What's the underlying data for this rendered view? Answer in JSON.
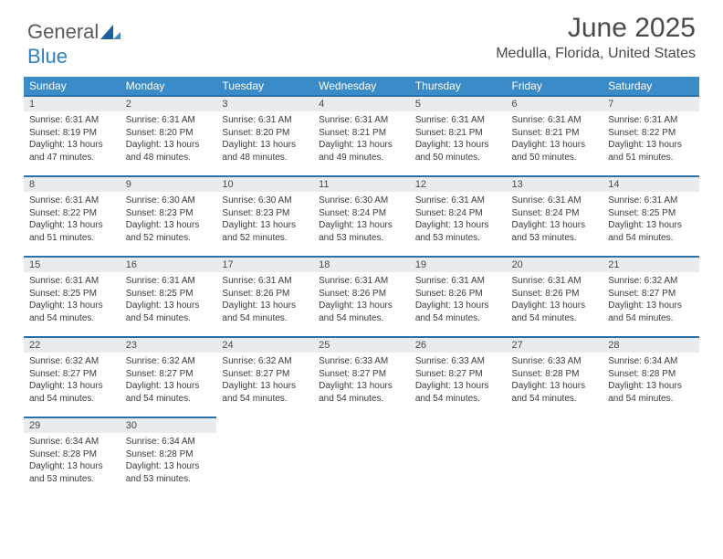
{
  "brand": {
    "part1": "General",
    "part2": "Blue"
  },
  "title": "June 2025",
  "location": "Medulla, Florida, United States",
  "colors": {
    "header_bg": "#3c8bc9",
    "header_text": "#ffffff",
    "daynum_bg": "#e9ecef",
    "daynum_border": "#2f6fa8",
    "body_text": "#3a3a3a",
    "title_text": "#4a4a4a",
    "logo_gray": "#5a5a5a",
    "logo_blue": "#2f7fc2"
  },
  "weekdays": [
    "Sunday",
    "Monday",
    "Tuesday",
    "Wednesday",
    "Thursday",
    "Friday",
    "Saturday"
  ],
  "weeks": [
    [
      {
        "num": "1",
        "sunrise": "Sunrise: 6:31 AM",
        "sunset": "Sunset: 8:19 PM",
        "daylight": "Daylight: 13 hours and 47 minutes."
      },
      {
        "num": "2",
        "sunrise": "Sunrise: 6:31 AM",
        "sunset": "Sunset: 8:20 PM",
        "daylight": "Daylight: 13 hours and 48 minutes."
      },
      {
        "num": "3",
        "sunrise": "Sunrise: 6:31 AM",
        "sunset": "Sunset: 8:20 PM",
        "daylight": "Daylight: 13 hours and 48 minutes."
      },
      {
        "num": "4",
        "sunrise": "Sunrise: 6:31 AM",
        "sunset": "Sunset: 8:21 PM",
        "daylight": "Daylight: 13 hours and 49 minutes."
      },
      {
        "num": "5",
        "sunrise": "Sunrise: 6:31 AM",
        "sunset": "Sunset: 8:21 PM",
        "daylight": "Daylight: 13 hours and 50 minutes."
      },
      {
        "num": "6",
        "sunrise": "Sunrise: 6:31 AM",
        "sunset": "Sunset: 8:21 PM",
        "daylight": "Daylight: 13 hours and 50 minutes."
      },
      {
        "num": "7",
        "sunrise": "Sunrise: 6:31 AM",
        "sunset": "Sunset: 8:22 PM",
        "daylight": "Daylight: 13 hours and 51 minutes."
      }
    ],
    [
      {
        "num": "8",
        "sunrise": "Sunrise: 6:31 AM",
        "sunset": "Sunset: 8:22 PM",
        "daylight": "Daylight: 13 hours and 51 minutes."
      },
      {
        "num": "9",
        "sunrise": "Sunrise: 6:30 AM",
        "sunset": "Sunset: 8:23 PM",
        "daylight": "Daylight: 13 hours and 52 minutes."
      },
      {
        "num": "10",
        "sunrise": "Sunrise: 6:30 AM",
        "sunset": "Sunset: 8:23 PM",
        "daylight": "Daylight: 13 hours and 52 minutes."
      },
      {
        "num": "11",
        "sunrise": "Sunrise: 6:30 AM",
        "sunset": "Sunset: 8:24 PM",
        "daylight": "Daylight: 13 hours and 53 minutes."
      },
      {
        "num": "12",
        "sunrise": "Sunrise: 6:31 AM",
        "sunset": "Sunset: 8:24 PM",
        "daylight": "Daylight: 13 hours and 53 minutes."
      },
      {
        "num": "13",
        "sunrise": "Sunrise: 6:31 AM",
        "sunset": "Sunset: 8:24 PM",
        "daylight": "Daylight: 13 hours and 53 minutes."
      },
      {
        "num": "14",
        "sunrise": "Sunrise: 6:31 AM",
        "sunset": "Sunset: 8:25 PM",
        "daylight": "Daylight: 13 hours and 54 minutes."
      }
    ],
    [
      {
        "num": "15",
        "sunrise": "Sunrise: 6:31 AM",
        "sunset": "Sunset: 8:25 PM",
        "daylight": "Daylight: 13 hours and 54 minutes."
      },
      {
        "num": "16",
        "sunrise": "Sunrise: 6:31 AM",
        "sunset": "Sunset: 8:25 PM",
        "daylight": "Daylight: 13 hours and 54 minutes."
      },
      {
        "num": "17",
        "sunrise": "Sunrise: 6:31 AM",
        "sunset": "Sunset: 8:26 PM",
        "daylight": "Daylight: 13 hours and 54 minutes."
      },
      {
        "num": "18",
        "sunrise": "Sunrise: 6:31 AM",
        "sunset": "Sunset: 8:26 PM",
        "daylight": "Daylight: 13 hours and 54 minutes."
      },
      {
        "num": "19",
        "sunrise": "Sunrise: 6:31 AM",
        "sunset": "Sunset: 8:26 PM",
        "daylight": "Daylight: 13 hours and 54 minutes."
      },
      {
        "num": "20",
        "sunrise": "Sunrise: 6:31 AM",
        "sunset": "Sunset: 8:26 PM",
        "daylight": "Daylight: 13 hours and 54 minutes."
      },
      {
        "num": "21",
        "sunrise": "Sunrise: 6:32 AM",
        "sunset": "Sunset: 8:27 PM",
        "daylight": "Daylight: 13 hours and 54 minutes."
      }
    ],
    [
      {
        "num": "22",
        "sunrise": "Sunrise: 6:32 AM",
        "sunset": "Sunset: 8:27 PM",
        "daylight": "Daylight: 13 hours and 54 minutes."
      },
      {
        "num": "23",
        "sunrise": "Sunrise: 6:32 AM",
        "sunset": "Sunset: 8:27 PM",
        "daylight": "Daylight: 13 hours and 54 minutes."
      },
      {
        "num": "24",
        "sunrise": "Sunrise: 6:32 AM",
        "sunset": "Sunset: 8:27 PM",
        "daylight": "Daylight: 13 hours and 54 minutes."
      },
      {
        "num": "25",
        "sunrise": "Sunrise: 6:33 AM",
        "sunset": "Sunset: 8:27 PM",
        "daylight": "Daylight: 13 hours and 54 minutes."
      },
      {
        "num": "26",
        "sunrise": "Sunrise: 6:33 AM",
        "sunset": "Sunset: 8:27 PM",
        "daylight": "Daylight: 13 hours and 54 minutes."
      },
      {
        "num": "27",
        "sunrise": "Sunrise: 6:33 AM",
        "sunset": "Sunset: 8:28 PM",
        "daylight": "Daylight: 13 hours and 54 minutes."
      },
      {
        "num": "28",
        "sunrise": "Sunrise: 6:34 AM",
        "sunset": "Sunset: 8:28 PM",
        "daylight": "Daylight: 13 hours and 54 minutes."
      }
    ],
    [
      {
        "num": "29",
        "sunrise": "Sunrise: 6:34 AM",
        "sunset": "Sunset: 8:28 PM",
        "daylight": "Daylight: 13 hours and 53 minutes."
      },
      {
        "num": "30",
        "sunrise": "Sunrise: 6:34 AM",
        "sunset": "Sunset: 8:28 PM",
        "daylight": "Daylight: 13 hours and 53 minutes."
      },
      null,
      null,
      null,
      null,
      null
    ]
  ]
}
